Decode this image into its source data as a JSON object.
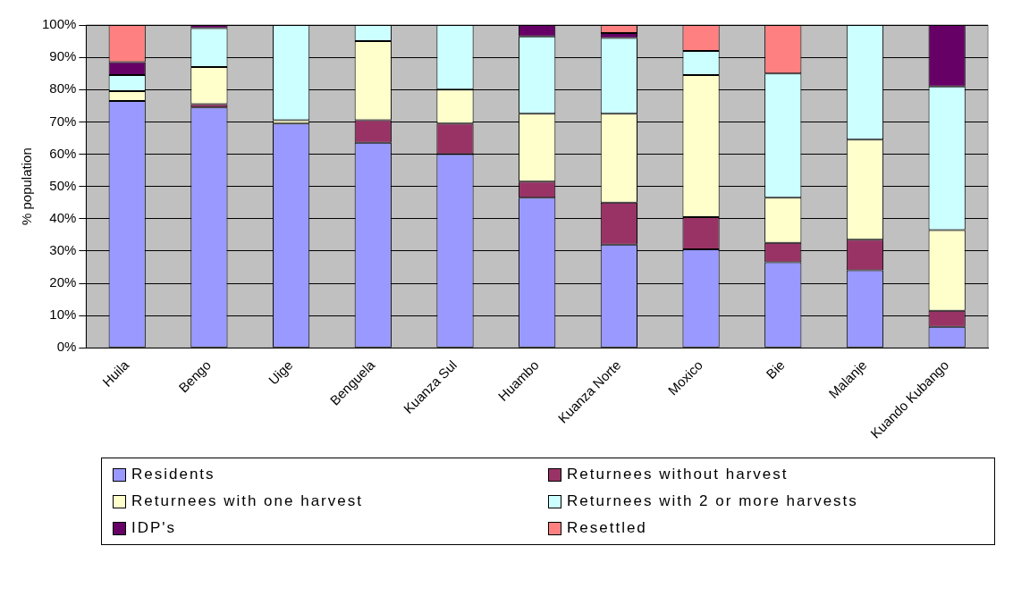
{
  "chart_data": {
    "type": "bar",
    "stacked": true,
    "ylabel": "% population",
    "categories": [
      "Huila",
      "Bengo",
      "Uige",
      "Benguela",
      "Kuanza Sul",
      "Huambo",
      "Kuanza Norte",
      "Moxico",
      "Bie",
      "Malanje",
      "Kuando Kubango"
    ],
    "series": [
      {
        "name": "Residents",
        "color": "#9999ff",
        "values": [
          76.5,
          74.5,
          69.5,
          63.5,
          60,
          46.5,
          32,
          30.5,
          26.5,
          24,
          6.5
        ]
      },
      {
        "name": "Returnees without harvest",
        "color": "#993366",
        "values": [
          0,
          1,
          0,
          7,
          9.5,
          5,
          13,
          10,
          6,
          9.5,
          5
        ]
      },
      {
        "name": "Returnees with one harvest",
        "color": "#ffffcc",
        "values": [
          3,
          11.5,
          1,
          24.5,
          10.5,
          21,
          27.5,
          44,
          14,
          31,
          25
        ]
      },
      {
        "name": "Returnees with 2 or more harvests",
        "color": "#ccffff",
        "values": [
          5,
          12,
          29.5,
          5,
          20,
          24,
          23.5,
          7.5,
          38.5,
          35.5,
          44.5
        ]
      },
      {
        "name": "IDP's",
        "color": "#660066",
        "values": [
          4,
          1,
          0,
          0,
          0,
          3.5,
          1.5,
          0,
          0,
          0,
          19
        ]
      },
      {
        "name": "Resettled",
        "color": "#ff8080",
        "values": [
          11.5,
          0,
          0,
          0,
          0,
          0,
          2.5,
          8,
          15,
          0,
          0
        ]
      }
    ],
    "ylim": [
      0,
      100
    ],
    "yticks": [
      {
        "value": 0,
        "label": "0%"
      },
      {
        "value": 10,
        "label": "10%"
      },
      {
        "value": 20,
        "label": "20%"
      },
      {
        "value": 30,
        "label": "30%"
      },
      {
        "value": 40,
        "label": "40%"
      },
      {
        "value": 50,
        "label": "50%"
      },
      {
        "value": 60,
        "label": "60%"
      },
      {
        "value": 70,
        "label": "70%"
      },
      {
        "value": 80,
        "label": "80%"
      },
      {
        "value": 90,
        "label": "90%"
      },
      {
        "value": 100,
        "label": "100%"
      }
    ],
    "grid": "y",
    "legend": "bottom"
  }
}
